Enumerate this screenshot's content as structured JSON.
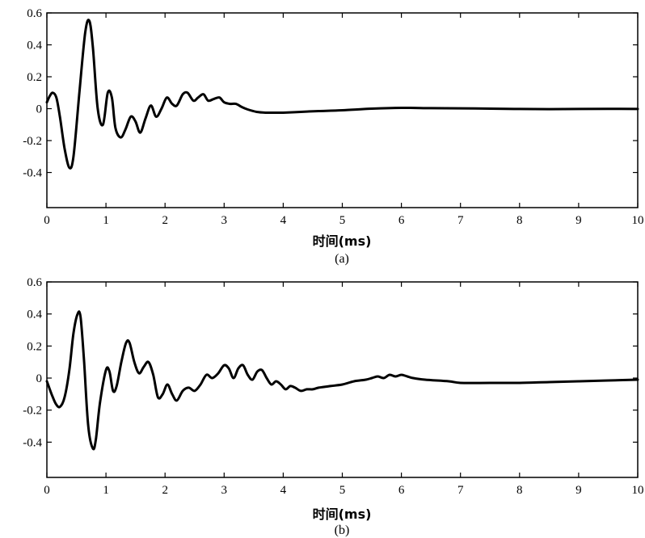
{
  "chart_data": [
    {
      "type": "line",
      "xlabel": "时间(ms)",
      "caption": "(a)",
      "xlim": [
        0,
        10
      ],
      "ylim": [
        -0.62,
        0.6
      ],
      "xticks": [
        "0",
        "1",
        "2",
        "3",
        "4",
        "5",
        "6",
        "7",
        "8",
        "9",
        "10"
      ],
      "yticks": [
        "0.6",
        "0.4",
        "0.2",
        "0",
        "-0.2",
        "-0.4"
      ],
      "series": [
        {
          "x": [
            0,
            0.05,
            0.1,
            0.16,
            0.22,
            0.3,
            0.38,
            0.45,
            0.55,
            0.65,
            0.72,
            0.78,
            0.86,
            0.95,
            1.03,
            1.1,
            1.16,
            1.25,
            1.33,
            1.42,
            1.5,
            1.58,
            1.67,
            1.76,
            1.85,
            1.94,
            2.03,
            2.12,
            2.2,
            2.3,
            2.38,
            2.48,
            2.56,
            2.65,
            2.73,
            2.82,
            2.92,
            3.0,
            3.1,
            3.2,
            3.3,
            3.4,
            3.55,
            3.7,
            3.85,
            4.0,
            4.3,
            4.6,
            5.0,
            5.5,
            6.0,
            6.5,
            7.0,
            7.5,
            8.0,
            8.5,
            9.0,
            9.5,
            10.0
          ],
          "y": [
            0.04,
            0.08,
            0.1,
            0.07,
            -0.05,
            -0.25,
            -0.37,
            -0.3,
            0.1,
            0.48,
            0.55,
            0.38,
            0.0,
            -0.1,
            0.1,
            0.07,
            -0.12,
            -0.18,
            -0.13,
            -0.05,
            -0.08,
            -0.15,
            -0.06,
            0.02,
            -0.05,
            0.0,
            0.07,
            0.03,
            0.02,
            0.09,
            0.1,
            0.05,
            0.07,
            0.09,
            0.05,
            0.06,
            0.07,
            0.04,
            0.03,
            0.03,
            0.01,
            -0.005,
            -0.02,
            -0.025,
            -0.025,
            -0.025,
            -0.02,
            -0.015,
            -0.01,
            0.0,
            0.005,
            0.003,
            0.002,
            0.0,
            -0.002,
            -0.003,
            -0.002,
            -0.001,
            -0.002
          ]
        }
      ]
    },
    {
      "type": "line",
      "xlabel": "时间(ms)",
      "caption": "(b)",
      "xlim": [
        0,
        10
      ],
      "ylim": [
        -0.62,
        0.6
      ],
      "xticks": [
        "0",
        "1",
        "2",
        "3",
        "4",
        "5",
        "6",
        "7",
        "8",
        "9",
        "10"
      ],
      "yticks": [
        "0.6",
        "0.4",
        "0.2",
        "0",
        "-0.2",
        "-0.4"
      ],
      "series": [
        {
          "x": [
            0,
            0.08,
            0.15,
            0.22,
            0.3,
            0.38,
            0.45,
            0.52,
            0.57,
            0.63,
            0.7,
            0.78,
            0.83,
            0.9,
            1.0,
            1.06,
            1.12,
            1.18,
            1.26,
            1.34,
            1.4,
            1.48,
            1.56,
            1.64,
            1.72,
            1.8,
            1.88,
            1.96,
            2.04,
            2.12,
            2.2,
            2.3,
            2.4,
            2.5,
            2.6,
            2.7,
            2.8,
            2.9,
            3.0,
            3.08,
            3.16,
            3.24,
            3.32,
            3.4,
            3.48,
            3.56,
            3.64,
            3.72,
            3.8,
            3.88,
            3.96,
            4.04,
            4.12,
            4.2,
            4.3,
            4.4,
            4.5,
            4.6,
            4.8,
            5.0,
            5.2,
            5.4,
            5.5,
            5.6,
            5.7,
            5.8,
            5.9,
            6.0,
            6.1,
            6.2,
            6.4,
            6.8,
            7.0,
            7.5,
            8.0,
            8.5,
            9.0,
            9.5,
            10.0
          ],
          "y": [
            -0.02,
            -0.1,
            -0.16,
            -0.18,
            -0.12,
            0.05,
            0.28,
            0.4,
            0.38,
            0.1,
            -0.3,
            -0.44,
            -0.38,
            -0.15,
            0.05,
            0.04,
            -0.08,
            -0.05,
            0.1,
            0.22,
            0.22,
            0.1,
            0.03,
            0.07,
            0.1,
            0.02,
            -0.12,
            -0.1,
            -0.04,
            -0.1,
            -0.14,
            -0.08,
            -0.06,
            -0.08,
            -0.04,
            0.02,
            0.0,
            0.03,
            0.08,
            0.06,
            0.0,
            0.06,
            0.08,
            0.02,
            -0.01,
            0.04,
            0.05,
            0.0,
            -0.04,
            -0.02,
            -0.04,
            -0.07,
            -0.05,
            -0.06,
            -0.08,
            -0.07,
            -0.07,
            -0.06,
            -0.05,
            -0.04,
            -0.02,
            -0.01,
            0.0,
            0.01,
            0.0,
            0.02,
            0.01,
            0.02,
            0.01,
            0.0,
            -0.01,
            -0.02,
            -0.03,
            -0.03,
            -0.03,
            -0.025,
            -0.02,
            -0.015,
            -0.01
          ]
        }
      ]
    }
  ]
}
